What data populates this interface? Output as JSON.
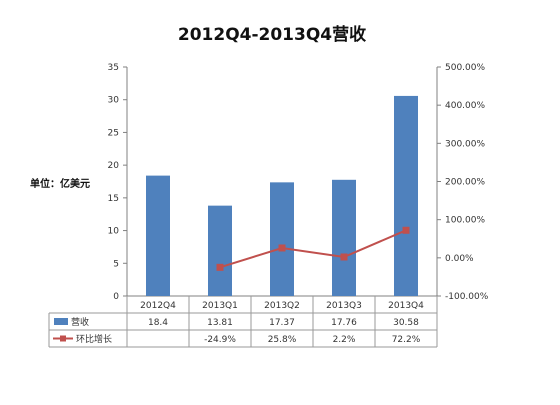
{
  "chart_data": {
    "type": "bar",
    "title": "2012Q4-2013Q4营收",
    "unit_label": "单位：亿美元",
    "categories": [
      "2012Q4",
      "2013Q1",
      "2013Q2",
      "2013Q3",
      "2013Q4"
    ],
    "series": [
      {
        "name": "营收",
        "type": "bar",
        "axis": "left",
        "color": "#4f81bd",
        "values": [
          18.4,
          13.81,
          17.37,
          17.76,
          30.58
        ],
        "table_labels": [
          "18.4",
          "13.81",
          "17.37",
          "17.76",
          "30.58"
        ]
      },
      {
        "name": "环比增长",
        "type": "line",
        "axis": "right",
        "color": "#c0504d",
        "values": [
          null,
          -24.9,
          25.8,
          2.2,
          72.2
        ],
        "table_labels": [
          "",
          "-24.9%",
          "25.8%",
          "2.2%",
          "72.2%"
        ]
      }
    ],
    "y_left": {
      "min": 0,
      "max": 35,
      "ticks": [
        "0",
        "5",
        "10",
        "15",
        "20",
        "25",
        "30",
        "35"
      ]
    },
    "y_right": {
      "min": -100,
      "max": 500,
      "ticks": [
        "-100.00%",
        "0.00%",
        "100.00%",
        "200.00%",
        "300.00%",
        "400.00%",
        "500.00%"
      ]
    },
    "gridlines": false,
    "legend_placement": "data-table-below"
  }
}
